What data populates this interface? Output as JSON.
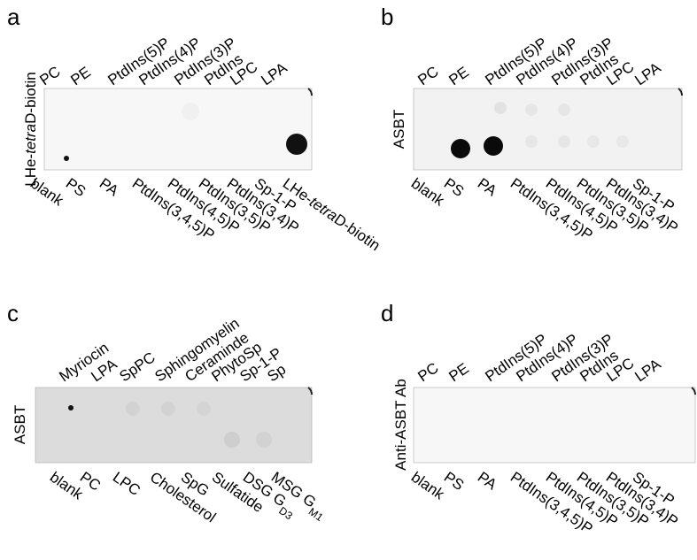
{
  "panels": [
    {
      "letter": "a",
      "side_label": [
        {
          "t": "LHe-"
        },
        {
          "t": "tetra",
          "italic": true
        },
        {
          "t": "D-biotin"
        }
      ],
      "top_labels": [
        "PC",
        "PE",
        "PtdIns(5)P",
        "PtdIns(4)P",
        "PtdIns(3)P",
        "PtdIns",
        "LPC",
        "LPA"
      ],
      "bottom_labels": [
        "blank",
        "PS",
        "PA",
        "PtdIns(3,4,5)P",
        "PtdIns(4,5)P",
        "PtdIns(3,5)P",
        "PtdIns(3,4)P",
        "Sp-1-P",
        [
          {
            "t": "LHe-"
          },
          {
            "t": "tetra",
            "italic": true
          },
          {
            "t": "D-biotin"
          }
        ]
      ]
    },
    {
      "letter": "b",
      "side_label": "ASBT",
      "top_labels": [
        "PC",
        "PE",
        "PtdIns(5)P",
        "PtdIns(4)P",
        "PtdIns(3)P",
        "PtdIns",
        "LPC",
        "LPA"
      ],
      "bottom_labels": [
        "blank",
        "PS",
        "PA",
        "PtdIns(3,4,5)P",
        "PtdIns(4,5)P",
        "PtdIns(3,5)P",
        "PtdIns(3,4)P",
        "Sp-1-P"
      ]
    },
    {
      "letter": "c",
      "side_label": "ASBT",
      "top_labels": [
        "Myriocin",
        "LPA",
        "SpPC",
        "Sphingomyelin",
        "Ceraminde",
        "PhytoSp",
        "Sp-1-P",
        "Sp"
      ],
      "bottom_labels": [
        "blank",
        "PC",
        "LPC",
        "Cholesterol",
        "SpG",
        "Sulfatide",
        [
          {
            "t": "DSG G"
          },
          {
            "t": "D3",
            "sub": true
          }
        ],
        [
          {
            "t": "MSG G"
          },
          {
            "t": "M1",
            "sub": true
          }
        ]
      ]
    },
    {
      "letter": "d",
      "side_label": "Anti-ASBT Ab",
      "top_labels": [
        "PC",
        "PE",
        "PtdIns(5)P",
        "PtdIns(4)P",
        "PtdIns(3)P",
        "PtdIns",
        "LPC",
        "LPA"
      ],
      "bottom_labels": [
        "blank",
        "PS",
        "PA",
        "PtdIns(3,4,5)P",
        "PtdIns(4,5)P",
        "PtdIns(3,5)P",
        "PtdIns(3,4)P",
        "Sp-1-P"
      ]
    }
  ]
}
